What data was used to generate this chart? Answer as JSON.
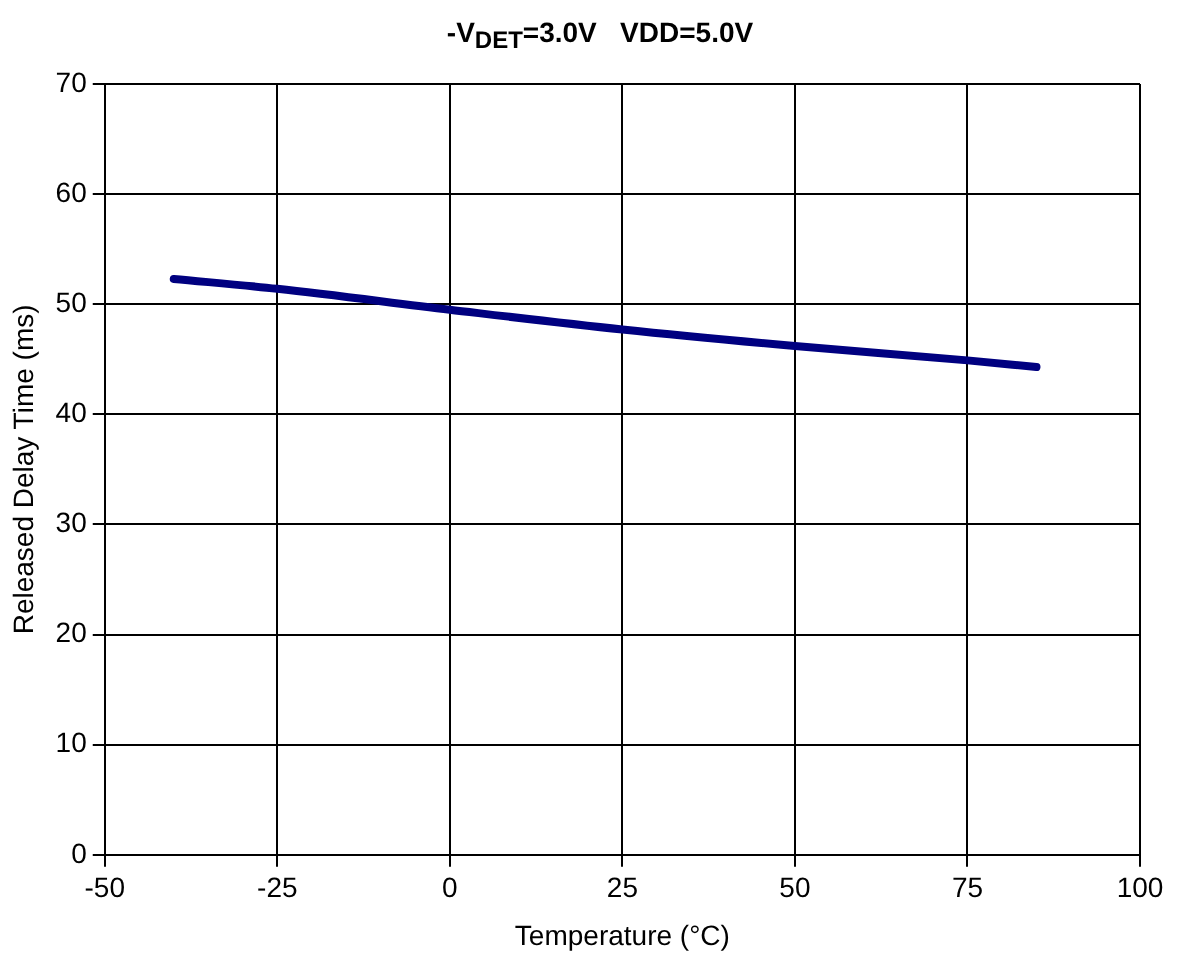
{
  "chart_data": {
    "type": "line",
    "title": "-V$_{DET}$=3.0V   VDD=5.0V",
    "xlabel": "Temperature (°C)",
    "ylabel": "Released Delay Time (ms)",
    "x": [
      -40,
      -25,
      0,
      25,
      50,
      75,
      85
    ],
    "series": [
      {
        "color": "#000080",
        "values": [
          52.3,
          51.4,
          49.5,
          47.7,
          46.2,
          44.9,
          44.3
        ]
      }
    ],
    "xlim": [
      -50,
      100
    ],
    "xticks": [
      -50,
      -25,
      0,
      25,
      50,
      75,
      100
    ],
    "ylim": [
      0,
      70
    ],
    "yticks": [
      0,
      10,
      20,
      30,
      40,
      50,
      60,
      70
    ],
    "grid": true,
    "legend": false,
    "marker": "none",
    "line_style": "solid"
  }
}
